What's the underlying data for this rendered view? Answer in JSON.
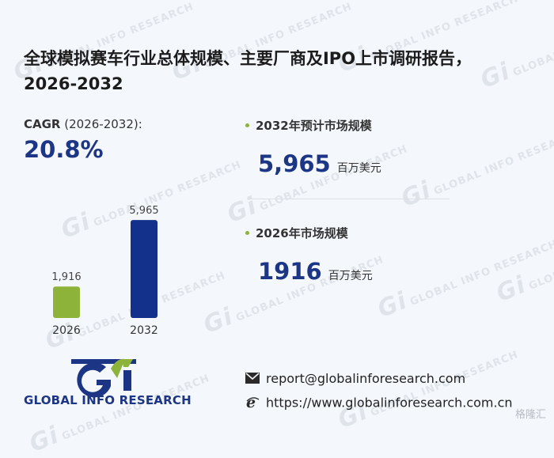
{
  "page": {
    "title": "全球模拟赛车行业总体规模、主要厂商及IPO上市调研报告，2026-2032",
    "watermark_text": "GLOBAL INFO RESEARCH",
    "watermark_mark": "Gi"
  },
  "cagr": {
    "label_bold": "CAGR",
    "label_rest": " (2026-2032):",
    "value": "20.8%"
  },
  "market_2032": {
    "label": "2032年预计市场规模",
    "value": "5,965",
    "unit": "百万美元"
  },
  "market_2026": {
    "label": "2026年市场规模",
    "value": "1916",
    "unit": "百万美元"
  },
  "chart_data": {
    "type": "bar",
    "categories": [
      "2026",
      "2032"
    ],
    "values": [
      1916,
      5965
    ],
    "value_labels": [
      "1,916",
      "5,965"
    ],
    "colors": [
      "#8db33b",
      "#13318a"
    ],
    "ylim": [
      0,
      6500
    ],
    "grid": false,
    "title": "",
    "xlabel": "",
    "ylabel": ""
  },
  "branding": {
    "logo_text": "GLOBAL INFO RESEARCH",
    "logo_icon": "gi-logo-icon",
    "brand_blue": "#1c3584",
    "brand_green": "#8db33b"
  },
  "contact": {
    "email": "report@globalinforesearch.com",
    "website": "https://www.globalinforesearch.com.cn",
    "email_icon": "envelope-icon",
    "web_icon": "ie-globe-icon"
  },
  "footer": {
    "source_watermark": "格隆汇"
  }
}
